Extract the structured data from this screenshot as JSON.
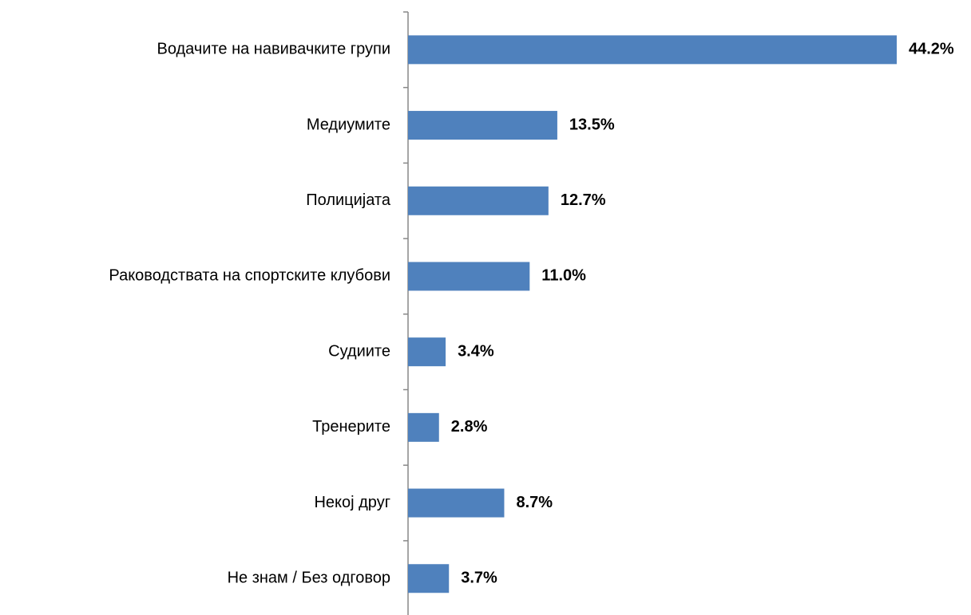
{
  "chart_data": {
    "type": "hbar",
    "categories": [
      "Водачите на навивачките групи",
      "Медиумите",
      "Полицијата",
      "Раководствата на спортските клубови",
      "Судиите",
      "Тренерите",
      "Некој друг",
      "Не знам / Без одговор"
    ],
    "values": [
      44.2,
      13.5,
      12.7,
      11.0,
      3.4,
      2.8,
      8.7,
      3.7
    ],
    "value_labels": [
      "44.2%",
      "13.5%",
      "12.7%",
      "11.0%",
      "3.4%",
      "2.8%",
      "8.7%",
      "3.7%"
    ],
    "color": "#4f81bd"
  }
}
